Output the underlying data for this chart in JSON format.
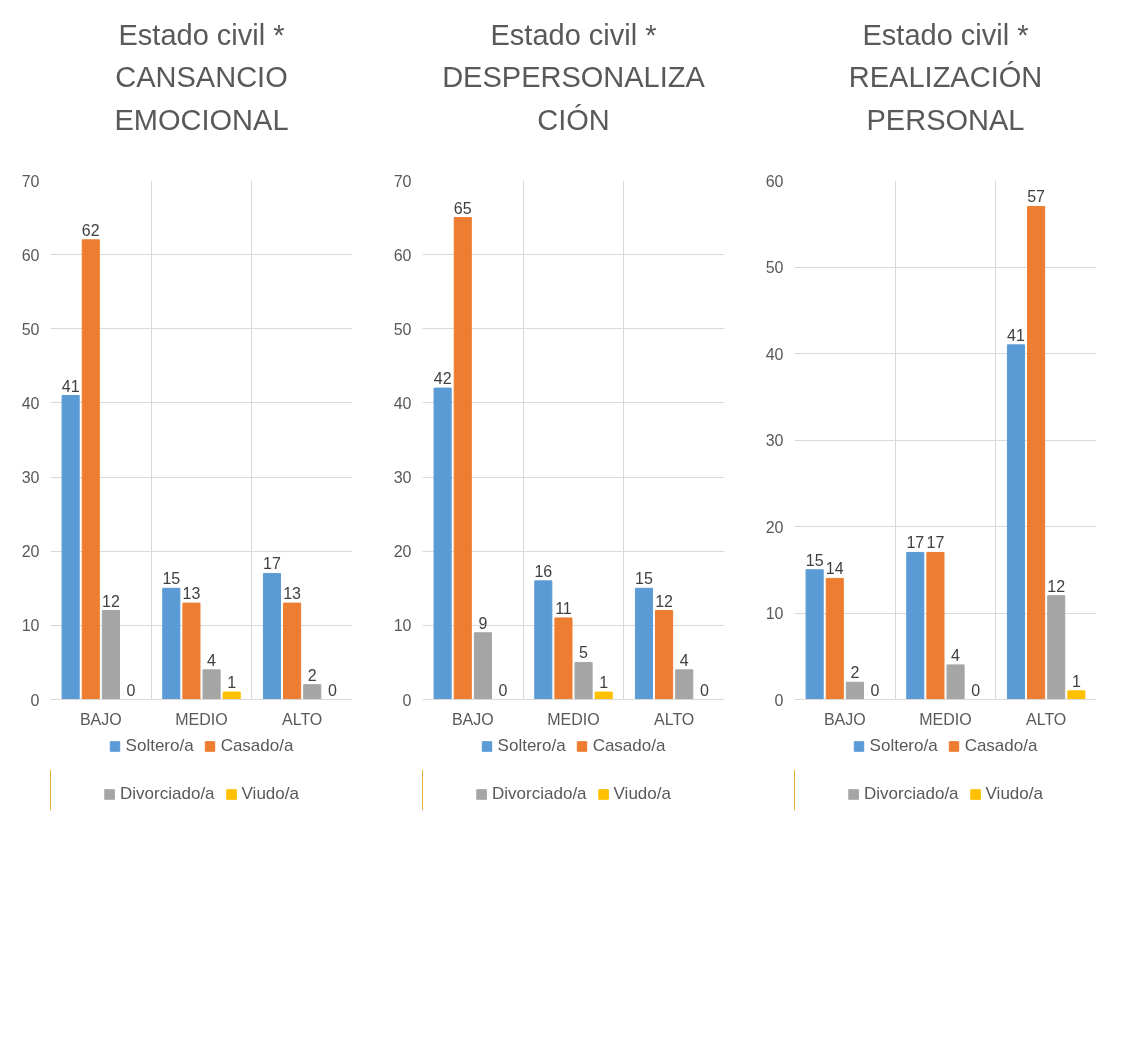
{
  "chart_data": [
    {
      "type": "bar",
      "title": "Estado civil * CANSANCIO EMOCIONAL",
      "categories": [
        "BAJO",
        "MEDIO",
        "ALTO"
      ],
      "ylim": [
        0,
        70
      ],
      "yticks": [
        0,
        10,
        20,
        30,
        40,
        50,
        60,
        70
      ],
      "grid": true,
      "legend": "bottom",
      "data_labels": true,
      "series": [
        {
          "name": "Soltero/a",
          "color": "#5b9bd5",
          "values": [
            41,
            15,
            17
          ]
        },
        {
          "name": "Casado/a",
          "color": "#ed7d31",
          "values": [
            62,
            13,
            13
          ]
        },
        {
          "name": "Divorciado/a",
          "color": "#a5a5a5",
          "values": [
            12,
            4,
            2
          ]
        },
        {
          "name": "Viudo/a",
          "color": "#ffc000",
          "values": [
            0,
            1,
            0
          ]
        }
      ]
    },
    {
      "type": "bar",
      "title": "Estado civil * DESPERSONALIZACIÓN",
      "categories": [
        "BAJO",
        "MEDIO",
        "ALTO"
      ],
      "ylim": [
        0,
        70
      ],
      "yticks": [
        0,
        10,
        20,
        30,
        40,
        50,
        60,
        70
      ],
      "grid": true,
      "legend": "bottom",
      "data_labels": true,
      "series": [
        {
          "name": "Soltero/a",
          "color": "#5b9bd5",
          "values": [
            42,
            16,
            15
          ]
        },
        {
          "name": "Casado/a",
          "color": "#ed7d31",
          "values": [
            65,
            11,
            12
          ]
        },
        {
          "name": "Divorciado/a",
          "color": "#a5a5a5",
          "values": [
            9,
            5,
            4
          ]
        },
        {
          "name": "Viudo/a",
          "color": "#ffc000",
          "values": [
            0,
            1,
            0
          ]
        }
      ]
    },
    {
      "type": "bar",
      "title": "Estado civil * REALIZACIÓN PERSONAL",
      "categories": [
        "BAJO",
        "MEDIO",
        "ALTO"
      ],
      "ylim": [
        0,
        60
      ],
      "yticks": [
        0,
        10,
        20,
        30,
        40,
        50,
        60
      ],
      "grid": true,
      "legend": "bottom",
      "data_labels": true,
      "series": [
        {
          "name": "Soltero/a",
          "color": "#5b9bd5",
          "values": [
            15,
            17,
            41
          ]
        },
        {
          "name": "Casado/a",
          "color": "#ed7d31",
          "values": [
            14,
            17,
            57
          ]
        },
        {
          "name": "Divorciado/a",
          "color": "#a5a5a5",
          "values": [
            2,
            4,
            12
          ]
        },
        {
          "name": "Viudo/a",
          "color": "#ffc000",
          "values": [
            0,
            0,
            1
          ]
        }
      ]
    }
  ]
}
